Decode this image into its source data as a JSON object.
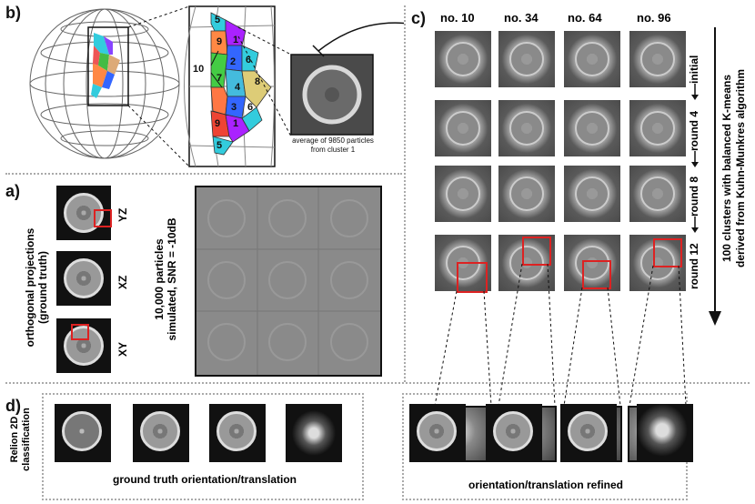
{
  "panels": {
    "a": "a)",
    "b": "b)",
    "c": "c)",
    "d": "d)"
  },
  "panel_b": {
    "cluster_numbers": [
      "5",
      "9",
      "1",
      "2",
      "6",
      "10",
      "7",
      "4",
      "8",
      "3",
      "6",
      "9",
      "1",
      "5"
    ],
    "caption_line1": "average of 9850 particles",
    "caption_line2": "from cluster 1"
  },
  "panel_a": {
    "ortho_label_line1": "orthogonal projections",
    "ortho_label_line2": "(ground truth)",
    "planes": [
      "YZ",
      "XZ",
      "XY"
    ],
    "sim_label_line1": "10,000 particles",
    "sim_label_line2": "simulated, SNR = -10dB"
  },
  "panel_c": {
    "columns": [
      "no. 10",
      "no. 34",
      "no. 64",
      "no. 96"
    ],
    "rounds": [
      "initial",
      "round 4",
      "round 8",
      "round 12"
    ],
    "side_label_line1": "100 clusters with balanced K-means",
    "side_label_line2": "derived from Kuhn-Munkres algorithm"
  },
  "panel_d": {
    "side_label_line1": "Relion 2D",
    "side_label_line2": "classification",
    "caption_left": "ground truth orientation/translation",
    "caption_right": "orientation/translation refined"
  }
}
